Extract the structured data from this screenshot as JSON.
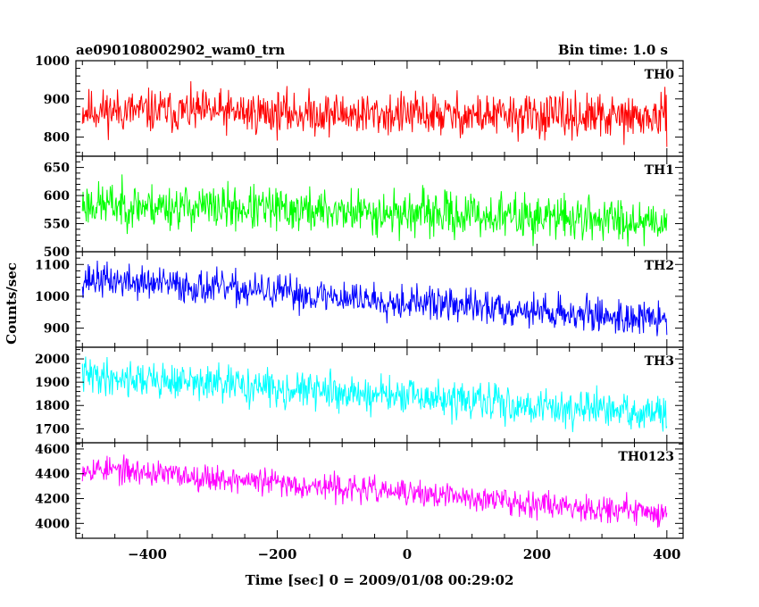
{
  "chart_data": {
    "type": "line",
    "title": "ae090108002902_wam0_trn",
    "subtitle": "Bin time: 1.0 s",
    "xlabel": "Time [sec] 0 = 2009/01/08 00:29:02",
    "ylabel": "Counts/sec",
    "xlim": [
      -510,
      425
    ],
    "x_ticks": [
      -400,
      -200,
      0,
      200,
      400
    ],
    "x_ticklabels": [
      "−400",
      "−200",
      "0",
      "200",
      "400"
    ],
    "x_range": [
      -500,
      400
    ],
    "grid": false,
    "panels": [
      {
        "name": "TH0",
        "color": "#ff0000",
        "ylim": [
          750,
          1000
        ],
        "yticks": [
          800,
          900,
          1000
        ],
        "trend": [
          870,
          850
        ],
        "noise": 40,
        "seed": 11
      },
      {
        "name": "TH1",
        "color": "#00ff00",
        "ylim": [
          500,
          670
        ],
        "yticks": [
          500,
          550,
          600,
          650
        ],
        "trend": [
          585,
          555
        ],
        "noise": 28,
        "seed": 23
      },
      {
        "name": "TH2",
        "color": "#0000ff",
        "ylim": [
          840,
          1140
        ],
        "yticks": [
          900,
          1000,
          1100
        ],
        "trend": [
          1055,
          925
        ],
        "noise": 38,
        "seed": 37
      },
      {
        "name": "TH3",
        "color": "#00ffff",
        "ylim": [
          1640,
          2050
        ],
        "yticks": [
          1700,
          1800,
          1900,
          2000
        ],
        "trend": [
          1930,
          1760
        ],
        "noise": 55,
        "seed": 41
      },
      {
        "name": "TH0123",
        "color": "#ff00ff",
        "ylim": [
          3880,
          4650
        ],
        "yticks": [
          4000,
          4200,
          4400,
          4600
        ],
        "trend": [
          4450,
          4080
        ],
        "noise": 75,
        "seed": 53
      }
    ]
  }
}
